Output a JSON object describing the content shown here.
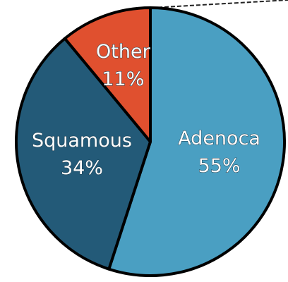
{
  "chart_data": {
    "type": "pie",
    "categories": [
      "Adenoca",
      "Squamous",
      "Other"
    ],
    "values": [
      55,
      34,
      11
    ],
    "value_labels": [
      "55%",
      "34%",
      "11%"
    ],
    "colors": [
      "#4a9fc2",
      "#235a78",
      "#e0502f"
    ]
  }
}
